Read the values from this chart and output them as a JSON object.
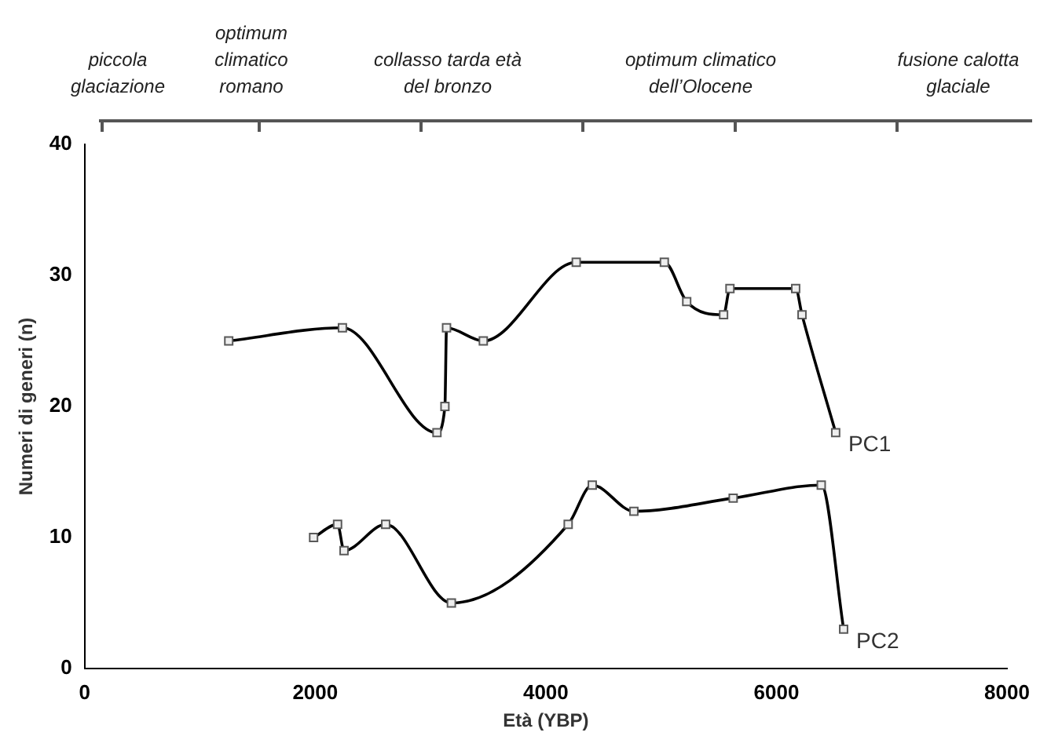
{
  "chart_data": {
    "type": "line",
    "xlabel": "Età (YBP)",
    "ylabel": "Numeri di generi (n)",
    "xlim": [
      0,
      8000
    ],
    "xticks": [
      0,
      2000,
      4000,
      6000,
      8000
    ],
    "ylim": [
      0,
      40
    ],
    "yticks": [
      0,
      10,
      20,
      30,
      40
    ],
    "grid": false,
    "legend": false,
    "marker": "square",
    "line_style": "solid",
    "annotations": [
      "piccola glaciazione",
      "optimum climatico romano",
      "collasso tarda età del bronzo",
      "optimum climatico dell’Olocene",
      "fusione calotta glaciale"
    ],
    "series": [
      {
        "name": "PC1",
        "color": "#000000",
        "x": [
          1250,
          2236,
          3056,
          3125,
          3139,
          3458,
          4264,
          5028,
          5222,
          5542,
          5597,
          6167,
          6222,
          6514
        ],
        "values": [
          25,
          26,
          18,
          20,
          26,
          25,
          31,
          31,
          28,
          27,
          29,
          29,
          27,
          18
        ]
      },
      {
        "name": "PC2",
        "color": "#000000",
        "x": [
          1986,
          2194,
          2250,
          2611,
          3181,
          4194,
          4403,
          4764,
          5625,
          6389,
          6583
        ],
        "values": [
          10,
          11,
          9,
          11,
          5,
          11,
          14,
          12,
          13,
          14,
          3
        ]
      }
    ]
  }
}
